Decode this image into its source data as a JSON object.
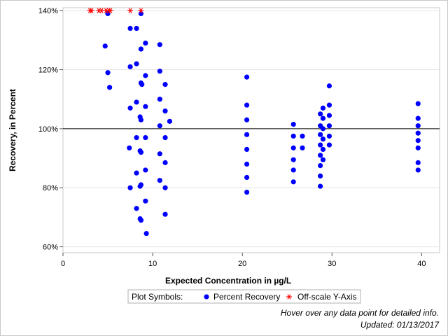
{
  "chart_data": {
    "type": "scatter",
    "xlabel": "Expected Concentration in µg/L",
    "ylabel": "Recovery, in Percent",
    "xlim": [
      0,
      42
    ],
    "ylim": [
      58,
      141
    ],
    "x_ticks": [
      0,
      10,
      20,
      30,
      40
    ],
    "y_ticks": [
      60,
      80,
      100,
      120,
      140
    ],
    "y_tick_labels": [
      "60%",
      "80%",
      "100%",
      "120%",
      "140%"
    ],
    "reference_line_y": 100,
    "grid": "horizontal",
    "legend": {
      "title": "Plot Symbols:",
      "placement": "bottom",
      "entries": [
        "Percent Recovery",
        "Off-scale Y-Axis"
      ]
    },
    "series": [
      {
        "name": "Percent Recovery",
        "marker": "circle",
        "color": "#0000ff",
        "points": [
          [
            5.0,
            139
          ],
          [
            4.7,
            128
          ],
          [
            5.0,
            119
          ],
          [
            5.2,
            114
          ],
          [
            7.5,
            134
          ],
          [
            8.2,
            134
          ],
          [
            9.2,
            129
          ],
          [
            8.7,
            127
          ],
          [
            7.5,
            121
          ],
          [
            8.2,
            122
          ],
          [
            9.2,
            118
          ],
          [
            8.7,
            115.5
          ],
          [
            8.8,
            115
          ],
          [
            8.2,
            109
          ],
          [
            7.5,
            107
          ],
          [
            9.2,
            107.5
          ],
          [
            8.6,
            104
          ],
          [
            8.7,
            103
          ],
          [
            8.2,
            97
          ],
          [
            9.2,
            97
          ],
          [
            7.4,
            93.5
          ],
          [
            8.6,
            92.5
          ],
          [
            8.7,
            92
          ],
          [
            9.2,
            86
          ],
          [
            8.2,
            85
          ],
          [
            7.5,
            80
          ],
          [
            8.7,
            81
          ],
          [
            8.6,
            80.5
          ],
          [
            9.2,
            75.5
          ],
          [
            8.2,
            73
          ],
          [
            8.6,
            69.5
          ],
          [
            8.7,
            69
          ],
          [
            9.3,
            64.5
          ],
          [
            8.7,
            139
          ],
          [
            10.8,
            128.5
          ],
          [
            10.8,
            119.5
          ],
          [
            11.4,
            115
          ],
          [
            10.8,
            110
          ],
          [
            11.4,
            106
          ],
          [
            11.9,
            102.5
          ],
          [
            10.8,
            101
          ],
          [
            11.4,
            97
          ],
          [
            10.8,
            91.5
          ],
          [
            11.4,
            88.5
          ],
          [
            10.8,
            82.5
          ],
          [
            11.4,
            80
          ],
          [
            11.4,
            71
          ],
          [
            20.5,
            117.5
          ],
          [
            20.5,
            108
          ],
          [
            20.5,
            103
          ],
          [
            20.5,
            98
          ],
          [
            20.5,
            93
          ],
          [
            20.5,
            88
          ],
          [
            20.5,
            83.5
          ],
          [
            20.5,
            78.5
          ],
          [
            25.7,
            101.5
          ],
          [
            25.7,
            97.5
          ],
          [
            25.7,
            93.5
          ],
          [
            25.7,
            89.5
          ],
          [
            25.7,
            86
          ],
          [
            25.7,
            82
          ],
          [
            26.7,
            97.5
          ],
          [
            26.7,
            93.5
          ],
          [
            28.7,
            105
          ],
          [
            28.7,
            101
          ],
          [
            28.7,
            98
          ],
          [
            28.7,
            94.5
          ],
          [
            28.7,
            91
          ],
          [
            28.7,
            87.5
          ],
          [
            28.7,
            84
          ],
          [
            28.7,
            80.5
          ],
          [
            29.0,
            107
          ],
          [
            29.0,
            103.5
          ],
          [
            29.0,
            100
          ],
          [
            29.0,
            96.5
          ],
          [
            29.0,
            93
          ],
          [
            29.0,
            89.5
          ],
          [
            29.7,
            114.5
          ],
          [
            29.7,
            108
          ],
          [
            29.7,
            104.5
          ],
          [
            29.7,
            101
          ],
          [
            29.7,
            97.5
          ],
          [
            29.7,
            94.5
          ],
          [
            39.6,
            108.5
          ],
          [
            39.6,
            103.5
          ],
          [
            39.6,
            101
          ],
          [
            39.6,
            98.5
          ],
          [
            39.6,
            96
          ],
          [
            39.6,
            93.5
          ],
          [
            39.6,
            88.5
          ],
          [
            39.6,
            86
          ]
        ]
      },
      {
        "name": "Off-scale Y-Axis",
        "marker": "asterisk",
        "color": "#ff0000",
        "points": [
          [
            3.0,
            140
          ],
          [
            3.2,
            140
          ],
          [
            4.0,
            140
          ],
          [
            4.3,
            140
          ],
          [
            4.8,
            140
          ],
          [
            5.1,
            140
          ],
          [
            5.3,
            140
          ],
          [
            7.5,
            140
          ],
          [
            8.7,
            140
          ]
        ]
      }
    ]
  },
  "footnotes": {
    "hover": "Hover over any data point for detailed info.",
    "updated": "Updated: 01/13/2017"
  }
}
